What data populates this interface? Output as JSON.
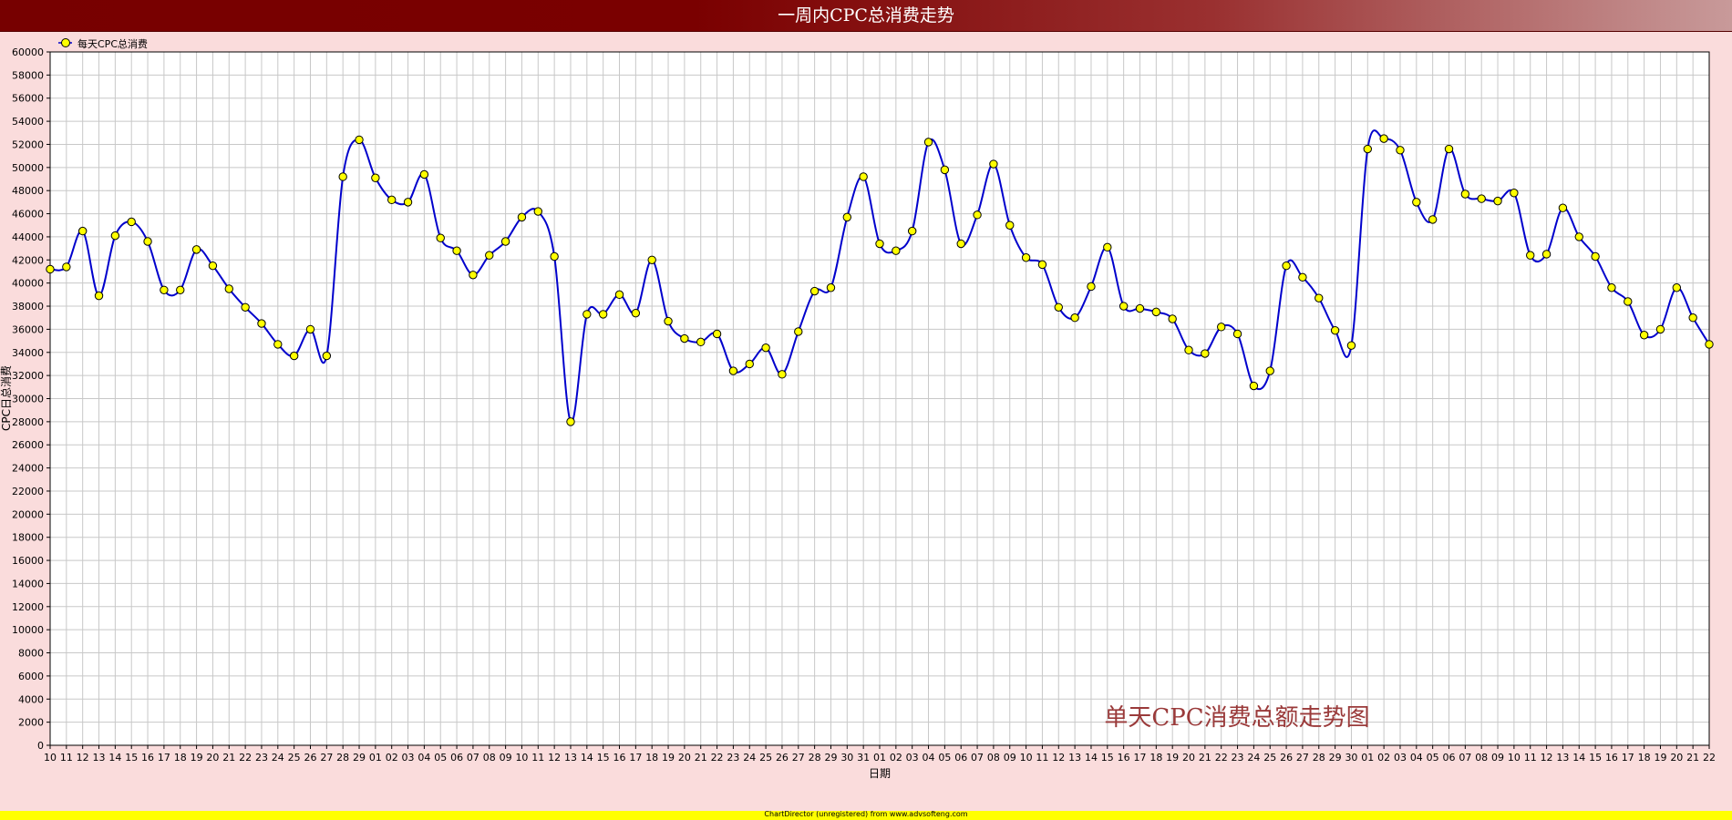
{
  "chart_data": {
    "type": "line",
    "title": "一周内CPC总消费走势",
    "xlabel": "日期",
    "ylabel": "CPC日总消费",
    "ylim": [
      0,
      60000
    ],
    "ytick_step": 2000,
    "grid": true,
    "legend_position": "top-left",
    "watermark": "单天CPC消费总额走势图",
    "categories": [
      "10",
      "11",
      "12",
      "13",
      "14",
      "15",
      "16",
      "17",
      "18",
      "19",
      "20",
      "21",
      "22",
      "23",
      "24",
      "25",
      "26",
      "27",
      "28",
      "29",
      "01",
      "02",
      "03",
      "04",
      "05",
      "06",
      "07",
      "08",
      "09",
      "10",
      "11",
      "12",
      "13",
      "14",
      "15",
      "16",
      "17",
      "18",
      "19",
      "20",
      "21",
      "22",
      "23",
      "24",
      "25",
      "26",
      "27",
      "28",
      "29",
      "30",
      "31",
      "01",
      "02",
      "03",
      "04",
      "05",
      "06",
      "07",
      "08",
      "09",
      "10",
      "11",
      "12",
      "13",
      "14",
      "15",
      "16",
      "17",
      "18",
      "19",
      "20",
      "21",
      "22",
      "23",
      "24",
      "25",
      "26",
      "27",
      "28",
      "29",
      "30",
      "01",
      "02",
      "03",
      "04",
      "05",
      "06",
      "07",
      "08",
      "09",
      "10",
      "11",
      "12",
      "13",
      "14",
      "15",
      "16",
      "17",
      "18",
      "19",
      "20",
      "21",
      "22"
    ],
    "series": [
      {
        "name": "每天CPC总消费",
        "color": "#0000cc",
        "marker_color": "#ffff00",
        "values": [
          41200,
          41400,
          44500,
          38900,
          44100,
          45300,
          43600,
          39400,
          39400,
          42900,
          41500,
          39500,
          37900,
          36500,
          34700,
          33700,
          36000,
          33700,
          49200,
          52400,
          49100,
          47200,
          47000,
          49400,
          43900,
          42800,
          40700,
          42400,
          43600,
          45700,
          46200,
          42300,
          28000,
          37300,
          37300,
          39000,
          37400,
          42000,
          36700,
          35200,
          34900,
          35600,
          32400,
          33000,
          34400,
          32100,
          35800,
          39300,
          39600,
          45700,
          49200,
          43400,
          42800,
          44500,
          52200,
          49800,
          43400,
          45900,
          50300,
          45000,
          42200,
          41600,
          37900,
          37000,
          39700,
          43100,
          38000,
          37800,
          37500,
          36900,
          34200,
          33900,
          36200,
          35600,
          31100,
          32400,
          41500,
          40500,
          38700,
          35900,
          34600,
          51600,
          52500,
          51500,
          47000,
          45500,
          51600,
          47700,
          47300,
          47100,
          47800,
          42400,
          42500,
          46500,
          44000,
          42300,
          39600,
          38400,
          35500,
          36000,
          39600,
          37000,
          34700
        ]
      }
    ]
  },
  "footer": {
    "text": "ChartDirector (unregistered) from www.advsofteng.com"
  }
}
